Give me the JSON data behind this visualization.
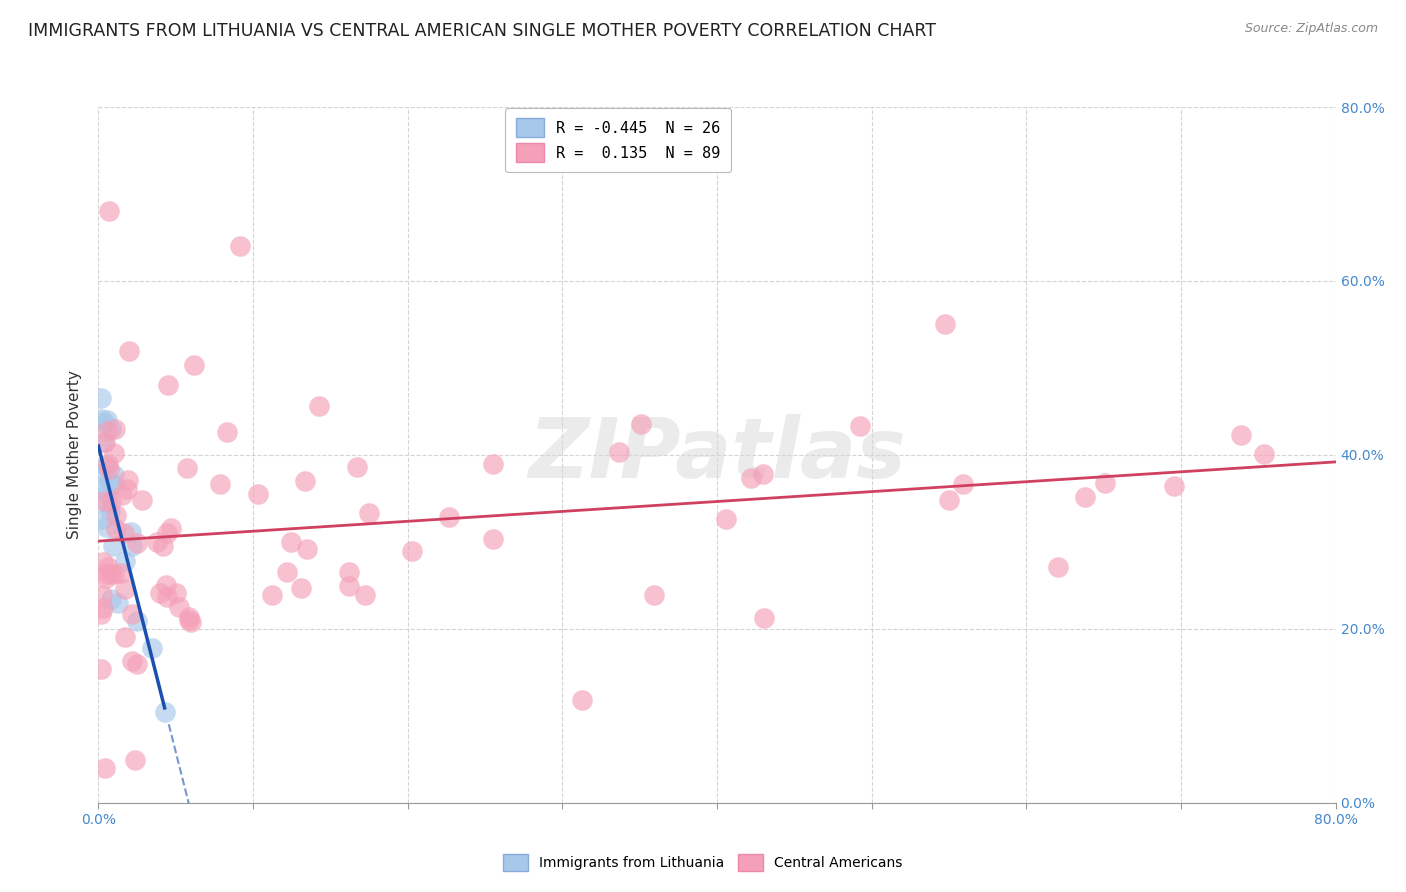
{
  "title": "IMMIGRANTS FROM LITHUANIA VS CENTRAL AMERICAN SINGLE MOTHER POVERTY CORRELATION CHART",
  "source": "Source: ZipAtlas.com",
  "ylabel": "Single Mother Poverty",
  "legend_entry1": "R = -0.445  N = 26",
  "legend_entry2": "R =  0.135  N = 89",
  "legend_label1": "Immigrants from Lithuania",
  "legend_label2": "Central Americans",
  "blue_color": "#a8c8ea",
  "pink_color": "#f4a0b8",
  "blue_line_color": "#1a50b0",
  "pink_line_color": "#d04060",
  "tick_color": "#4488cc",
  "watermark_color": "#d8d8d8",
  "watermark_alpha": 0.5,
  "background_color": "#ffffff",
  "grid_color": "#d0d0d0",
  "title_fontsize": 12.5,
  "axis_fontsize": 10,
  "legend_fontsize": 11,
  "xlim": [
    0,
    0.8
  ],
  "ylim": [
    0,
    0.8
  ],
  "right_ytick_values": [
    0.0,
    0.2,
    0.4,
    0.6,
    0.8
  ],
  "right_ytick_labels": [
    "0.0%",
    "20.0%",
    "40.0%",
    "60.0%",
    "80.0%"
  ],
  "blue_R": -0.445,
  "blue_N": 26,
  "pink_R": 0.135,
  "pink_N": 89
}
